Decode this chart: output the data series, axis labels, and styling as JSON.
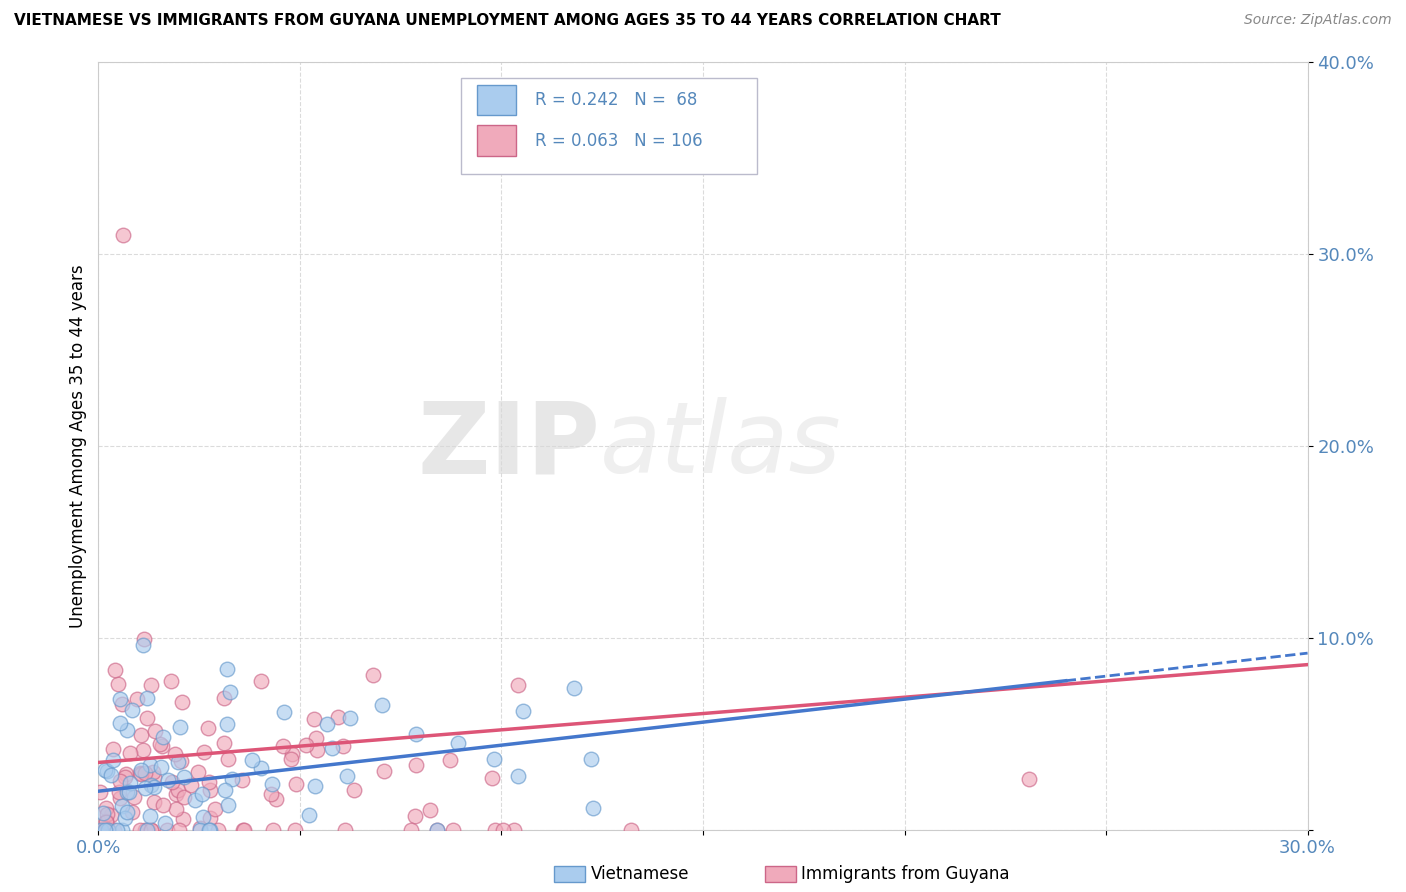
{
  "title": "VIETNAMESE VS IMMIGRANTS FROM GUYANA UNEMPLOYMENT AMONG AGES 35 TO 44 YEARS CORRELATION CHART",
  "source": "Source: ZipAtlas.com",
  "ylabel": "Unemployment Among Ages 35 to 44 years",
  "xlim": [
    0.0,
    0.3
  ],
  "ylim": [
    0.0,
    0.4
  ],
  "xticks": [
    0.0,
    0.05,
    0.1,
    0.15,
    0.2,
    0.25,
    0.3
  ],
  "xticklabels": [
    "0.0%",
    "",
    "",
    "",
    "",
    "",
    "30.0%"
  ],
  "yticks": [
    0.0,
    0.1,
    0.2,
    0.3,
    0.4
  ],
  "yticklabels": [
    "",
    "10.0%",
    "20.0%",
    "30.0%",
    "40.0%"
  ],
  "viet_R": 0.242,
  "viet_N": 68,
  "guyana_R": 0.063,
  "guyana_N": 106,
  "viet_color": "#aaccee",
  "viet_edge": "#6699cc",
  "guyana_color": "#f0aabb",
  "guyana_edge": "#cc6688",
  "legend_label_viet": "Vietnamese",
  "legend_label_guyana": "Immigrants from Guyana",
  "watermark_zip": "ZIP",
  "watermark_atlas": "atlas",
  "background_color": "#ffffff",
  "grid_color": "#cccccc",
  "tick_color": "#5588bb",
  "viet_line_color": "#4477cc",
  "guyana_line_color": "#dd5577"
}
